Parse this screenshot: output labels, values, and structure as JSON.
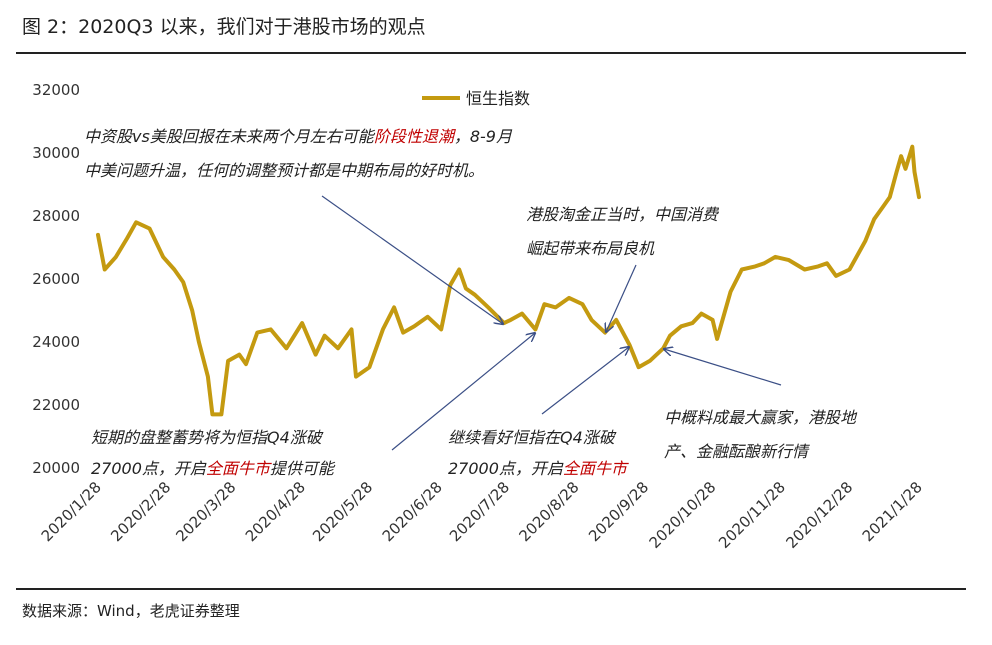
{
  "header": {
    "title": "图 2：2020Q3 以来，我们对于港股市场的观点"
  },
  "footer": {
    "source": "数据来源：Wind，老虎证券整理"
  },
  "annotations": [
    {
      "line1": [
        {
          "t": "中资股vs美股回报在未来两个月左右可能"
        },
        {
          "t": "阶段性退潮",
          "red": true
        },
        {
          "t": "，8-9月"
        }
      ],
      "line2": [
        {
          "t": "中美问题升温，任何的调整预计都是中期布局的好时机。"
        }
      ]
    },
    {
      "line1": [
        {
          "t": "港股淘金正当时，中国消费"
        }
      ],
      "line2": [
        {
          "t": "崛起带来布局良机"
        }
      ]
    },
    {
      "line1": [
        {
          "t": "短期的盘整蓄势将为恒指Q4涨破"
        }
      ],
      "line2": [
        {
          "t": "27000点，开启"
        },
        {
          "t": "全面牛市",
          "red": true
        },
        {
          "t": "提供可能"
        }
      ]
    },
    {
      "line1": [
        {
          "t": "继续看好恒指在Q4涨破"
        }
      ],
      "line2": [
        {
          "t": "27000点，开启"
        },
        {
          "t": "全面牛市",
          "red": true
        }
      ]
    },
    {
      "line1": [
        {
          "t": "中概料成最大赢家，港股地"
        }
      ],
      "line2": [
        {
          "t": "产、金融酝酿新行情"
        }
      ]
    }
  ],
  "chart_data": {
    "type": "line",
    "title": "",
    "xlabel": "",
    "ylabel": "",
    "ylim": [
      20000,
      32000
    ],
    "yticks": [
      20000,
      22000,
      24000,
      26000,
      28000,
      30000,
      32000
    ],
    "xticks": [
      "2020/1/28",
      "2020/2/28",
      "2020/3/28",
      "2020/4/28",
      "2020/5/28",
      "2020/6/28",
      "2020/7/28",
      "2020/8/28",
      "2020/9/28",
      "2020/10/28",
      "2020/11/28",
      "2020/12/28",
      "2021/1/28"
    ],
    "grid": false,
    "legend": "top-center",
    "color": "#c49a10",
    "series": [
      {
        "name": "恒生指数",
        "points": [
          [
            "2020/1/28",
            27400
          ],
          [
            "2020/1/31",
            26300
          ],
          [
            "2020/2/5",
            26700
          ],
          [
            "2020/2/10",
            27300
          ],
          [
            "2020/2/14",
            27800
          ],
          [
            "2020/2/20",
            27600
          ],
          [
            "2020/2/26",
            26700
          ],
          [
            "2020/3/2",
            26300
          ],
          [
            "2020/3/6",
            25900
          ],
          [
            "2020/3/10",
            25000
          ],
          [
            "2020/3/13",
            24000
          ],
          [
            "2020/3/17",
            22900
          ],
          [
            "2020/3/19",
            21700
          ],
          [
            "2020/3/23",
            21700
          ],
          [
            "2020/3/26",
            23400
          ],
          [
            "2020/3/31",
            23600
          ],
          [
            "2020/4/3",
            23300
          ],
          [
            "2020/4/8",
            24300
          ],
          [
            "2020/4/14",
            24400
          ],
          [
            "2020/4/21",
            23800
          ],
          [
            "2020/4/28",
            24600
          ],
          [
            "2020/5/4",
            23600
          ],
          [
            "2020/5/8",
            24200
          ],
          [
            "2020/5/14",
            23800
          ],
          [
            "2020/5/20",
            24400
          ],
          [
            "2020/5/22",
            22900
          ],
          [
            "2020/5/28",
            23200
          ],
          [
            "2020/6/3",
            24400
          ],
          [
            "2020/6/8",
            25100
          ],
          [
            "2020/6/12",
            24300
          ],
          [
            "2020/6/17",
            24500
          ],
          [
            "2020/6/23",
            24800
          ],
          [
            "2020/6/29",
            24400
          ],
          [
            "2020/7/3",
            25800
          ],
          [
            "2020/7/7",
            26300
          ],
          [
            "2020/7/10",
            25700
          ],
          [
            "2020/7/14",
            25500
          ],
          [
            "2020/7/20",
            25100
          ],
          [
            "2020/7/27",
            24600
          ],
          [
            "2020/7/30",
            24700
          ],
          [
            "2020/8/4",
            24900
          ],
          [
            "2020/8/10",
            24400
          ],
          [
            "2020/8/14",
            25200
          ],
          [
            "2020/8/19",
            25100
          ],
          [
            "2020/8/25",
            25400
          ],
          [
            "2020/8/31",
            25200
          ],
          [
            "2020/9/4",
            24700
          ],
          [
            "2020/9/10",
            24300
          ],
          [
            "2020/9/15",
            24700
          ],
          [
            "2020/9/21",
            23900
          ],
          [
            "2020/9/25",
            23200
          ],
          [
            "2020/9/30",
            23400
          ],
          [
            "2020/10/6",
            23800
          ],
          [
            "2020/10/9",
            24200
          ],
          [
            "2020/10/14",
            24500
          ],
          [
            "2020/10/19",
            24600
          ],
          [
            "2020/10/23",
            24900
          ],
          [
            "2020/10/28",
            24700
          ],
          [
            "2020/10/30",
            24100
          ],
          [
            "2020/11/5",
            25600
          ],
          [
            "2020/11/10",
            26300
          ],
          [
            "2020/11/16",
            26400
          ],
          [
            "2020/11/20",
            26500
          ],
          [
            "2020/11/25",
            26700
          ],
          [
            "2020/12/1",
            26600
          ],
          [
            "2020/12/8",
            26300
          ],
          [
            "2020/12/14",
            26400
          ],
          [
            "2020/12/18",
            26500
          ],
          [
            "2020/12/22",
            26100
          ],
          [
            "2020/12/28",
            26300
          ],
          [
            "2021/1/4",
            27200
          ],
          [
            "2021/1/8",
            27900
          ],
          [
            "2021/1/12",
            28300
          ],
          [
            "2021/1/15",
            28600
          ],
          [
            "2021/1/18",
            29400
          ],
          [
            "2021/1/20",
            29900
          ],
          [
            "2021/1/22",
            29500
          ],
          [
            "2021/1/25",
            30200
          ],
          [
            "2021/1/26",
            29400
          ],
          [
            "2021/1/28",
            28600
          ]
        ]
      }
    ]
  }
}
